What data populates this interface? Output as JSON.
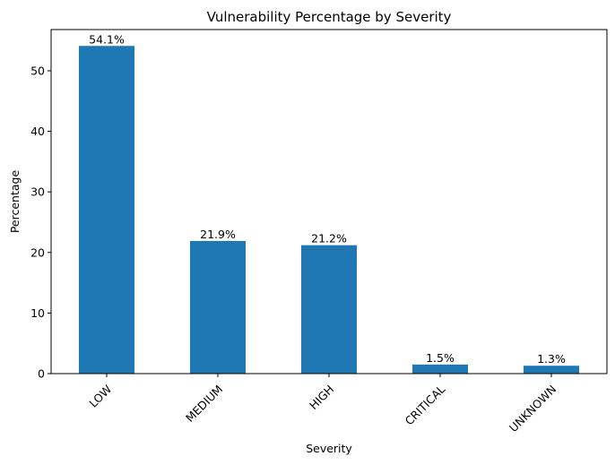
{
  "chart_data": {
    "type": "bar",
    "title": "Vulnerability Percentage by Severity",
    "xlabel": "Severity",
    "ylabel": "Percentage",
    "categories": [
      "LOW",
      "MEDIUM",
      "HIGH",
      "CRITICAL",
      "UNKNOWN"
    ],
    "values": [
      54.1,
      21.9,
      21.2,
      1.5,
      1.3
    ],
    "data_labels": [
      "54.1%",
      "21.9%",
      "21.2%",
      "1.5%",
      "1.3%"
    ],
    "yticks": [
      0,
      10,
      20,
      30,
      40,
      50
    ],
    "ylim": [
      0,
      56.8
    ],
    "bar_color": "#1f77b4",
    "grid": false,
    "legend": "none"
  }
}
